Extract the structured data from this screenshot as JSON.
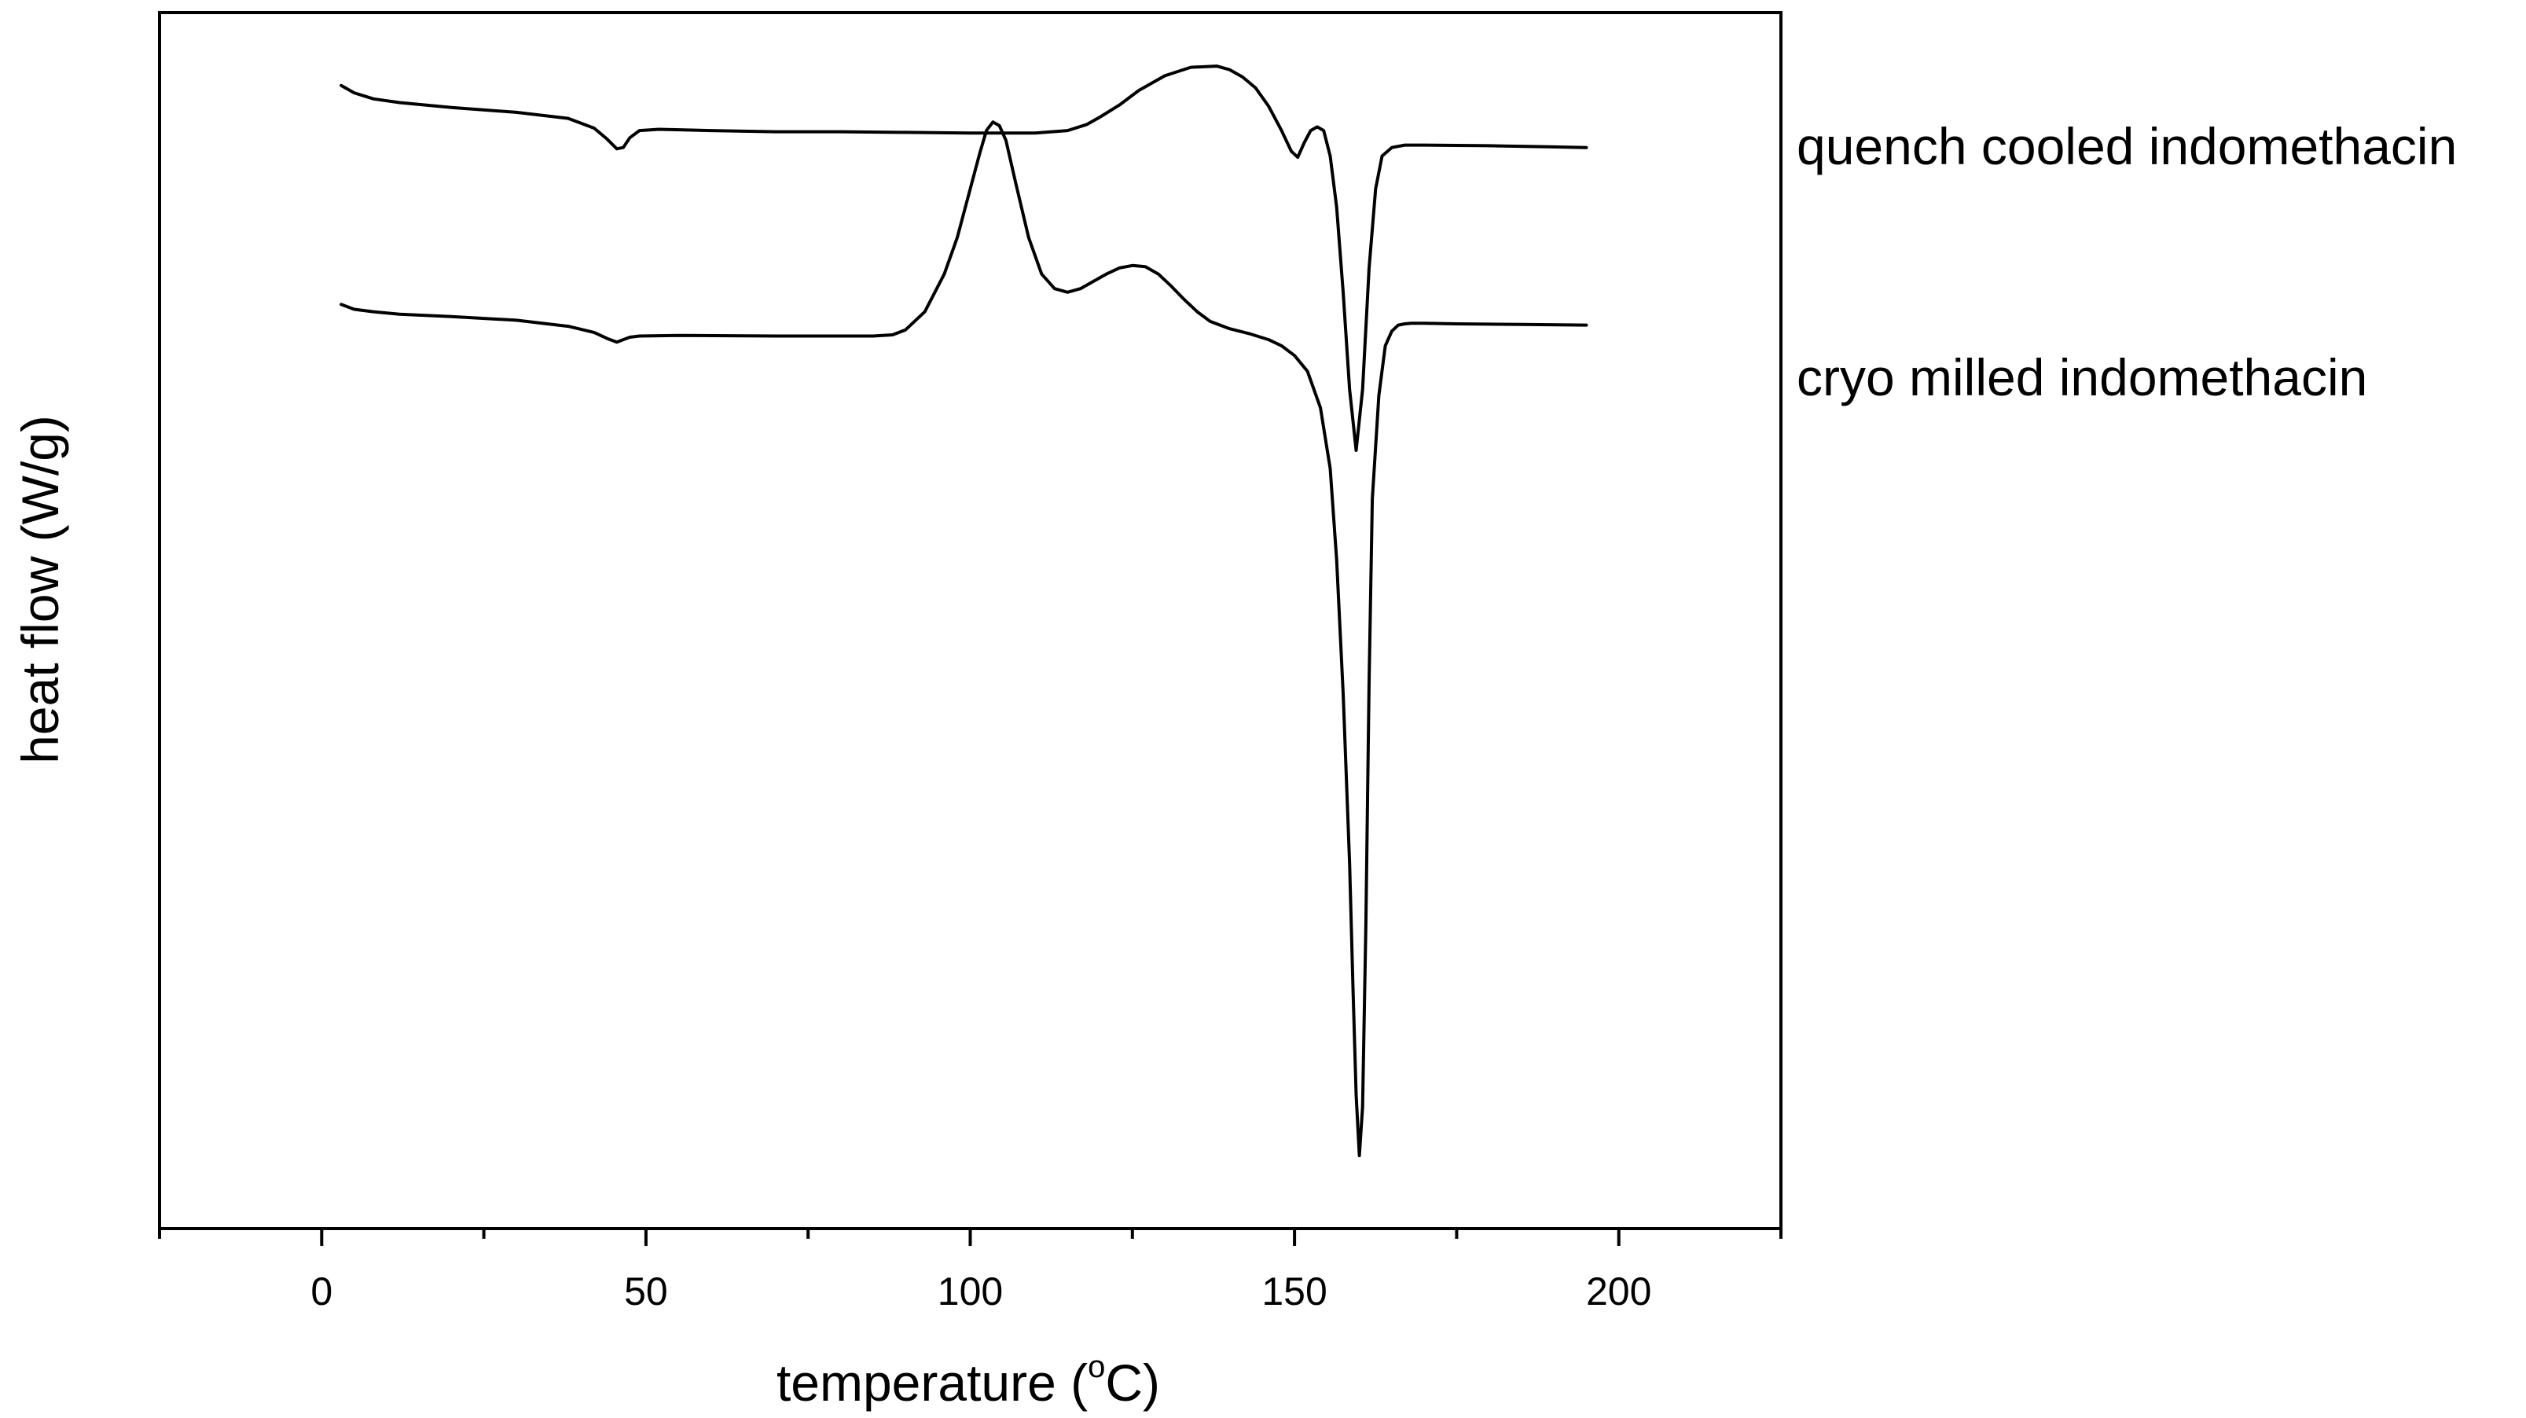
{
  "chart_data": {
    "type": "line",
    "xlabel": "temperature (",
    "xlabel_degree": "o",
    "xlabel_unit": "C)",
    "ylabel": "heat flow (W/g)",
    "xlim": [
      -25,
      225
    ],
    "ylim": [
      0,
      100
    ],
    "xticks": [
      0,
      50,
      100,
      150,
      200
    ],
    "xtick_labels": [
      "0",
      "50",
      "100",
      "150",
      "200"
    ],
    "xticks_minor": [
      -25,
      25,
      75,
      125,
      175,
      225
    ],
    "yticks": [],
    "grid": false,
    "legend": "none",
    "series": [
      {
        "name": "quench cooled indomethacin",
        "color": "#000000",
        "x": [
          3,
          5,
          8,
          12,
          20,
          30,
          38,
          42,
          44,
          45.5,
          46.5,
          47.5,
          49,
          52,
          60,
          70,
          80,
          90,
          100,
          110,
          115,
          118,
          120,
          123,
          126,
          130,
          134,
          138,
          140,
          142,
          144,
          146,
          148,
          149.5,
          150.5,
          151.5,
          152.5,
          153.5,
          154.5,
          155.5,
          156.5,
          157.5,
          158.5,
          159.5,
          160.5,
          161.5,
          162.5,
          163.5,
          165,
          167,
          170,
          180,
          190,
          195
        ],
        "y": [
          94.0,
          93.4,
          92.9,
          92.6,
          92.2,
          91.8,
          91.3,
          90.5,
          89.6,
          88.8,
          88.9,
          89.7,
          90.3,
          90.4,
          90.3,
          90.2,
          90.2,
          90.15,
          90.1,
          90.1,
          90.3,
          90.8,
          91.4,
          92.4,
          93.6,
          94.8,
          95.5,
          95.6,
          95.3,
          94.7,
          93.8,
          92.3,
          90.3,
          88.6,
          88.1,
          89.3,
          90.3,
          90.6,
          90.3,
          88.2,
          84.0,
          77.0,
          69.0,
          64.0,
          69.0,
          79.0,
          85.5,
          88.2,
          88.9,
          89.1,
          89.1,
          89.05,
          88.95,
          88.9
        ]
      },
      {
        "name": "cryo milled indomethacin",
        "color": "#000000",
        "x": [
          3,
          5,
          8,
          12,
          20,
          30,
          38,
          42,
          44,
          45.5,
          46.5,
          47.5,
          49,
          55,
          70,
          85,
          88,
          90,
          93,
          96,
          98,
          100,
          101.5,
          102.5,
          103.5,
          104.5,
          105.5,
          107,
          109,
          111,
          113,
          115,
          117,
          119,
          121,
          123,
          125,
          127,
          129,
          131,
          133,
          135,
          137,
          140,
          143,
          146,
          148,
          150,
          152,
          154,
          155.5,
          156.5,
          157.5,
          158.5,
          159,
          159.5,
          160,
          160.5,
          161,
          161.5,
          162,
          163,
          164,
          165,
          166,
          167,
          168,
          170,
          175,
          185,
          195
        ],
        "y": [
          76.0,
          75.6,
          75.4,
          75.2,
          75.0,
          74.7,
          74.2,
          73.7,
          73.2,
          72.9,
          73.1,
          73.3,
          73.4,
          73.45,
          73.4,
          73.4,
          73.5,
          73.9,
          75.4,
          78.5,
          81.5,
          85.5,
          88.5,
          90.3,
          91.0,
          90.7,
          89.5,
          86.0,
          81.5,
          78.5,
          77.3,
          77.0,
          77.3,
          77.9,
          78.5,
          79.0,
          79.2,
          79.1,
          78.5,
          77.5,
          76.4,
          75.4,
          74.6,
          74.0,
          73.6,
          73.1,
          72.6,
          71.8,
          70.5,
          67.5,
          62.5,
          55.0,
          44.0,
          30.0,
          20.0,
          11.0,
          6.0,
          10.0,
          25.0,
          45.0,
          60.0,
          68.5,
          72.6,
          73.8,
          74.3,
          74.4,
          74.45,
          74.45,
          74.4,
          74.35,
          74.3
        ]
      }
    ],
    "annotations": [
      {
        "text": "quench cooled indomethacin",
        "series_index": 0
      },
      {
        "text": "cryo milled indomethacin",
        "series_index": 1
      }
    ]
  }
}
